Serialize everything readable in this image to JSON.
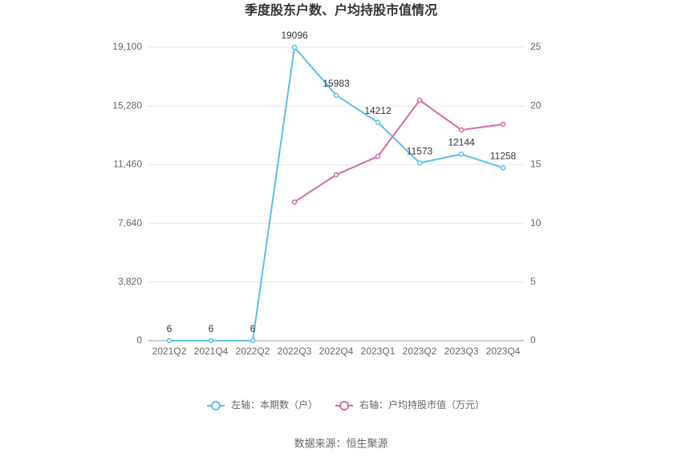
{
  "chart_data": {
    "type": "line",
    "title": "季度股东户数、户均持股市值情况",
    "categories": [
      "2021Q2",
      "2021Q4",
      "2022Q2",
      "2022Q3",
      "2022Q4",
      "2023Q1",
      "2023Q2",
      "2023Q3",
      "2023Q4"
    ],
    "series": [
      {
        "name": "左轴：本期数（户）",
        "color": "#5bc0eb",
        "axis": "y",
        "values": [
          6,
          6,
          6,
          19096,
          15983,
          14212,
          11573,
          12144,
          11258
        ],
        "data_labels": true
      },
      {
        "name": "右轴：户均持股市值（万元）",
        "color": "#d46aa8",
        "axis": "y2",
        "values": [
          null,
          null,
          null,
          11.82,
          14.14,
          15.71,
          20.49,
          17.96,
          18.44
        ],
        "data_labels": false
      }
    ],
    "ylim": [
      0,
      19100
    ],
    "yticks": [
      0,
      {
        "value": 3820,
        "label": "3,820"
      },
      {
        "value": 7640,
        "label": "7,640"
      },
      {
        "value": 11460,
        "label": "11,460"
      },
      {
        "value": 15280,
        "label": "15,280"
      },
      {
        "value": 19100,
        "label": "19,100"
      }
    ],
    "y2lim": [
      0,
      25
    ],
    "y2ticks": [
      0,
      5,
      10,
      15,
      20,
      25
    ],
    "grid": true,
    "legend": "bottom",
    "source": "数据来源：恒生聚源"
  }
}
